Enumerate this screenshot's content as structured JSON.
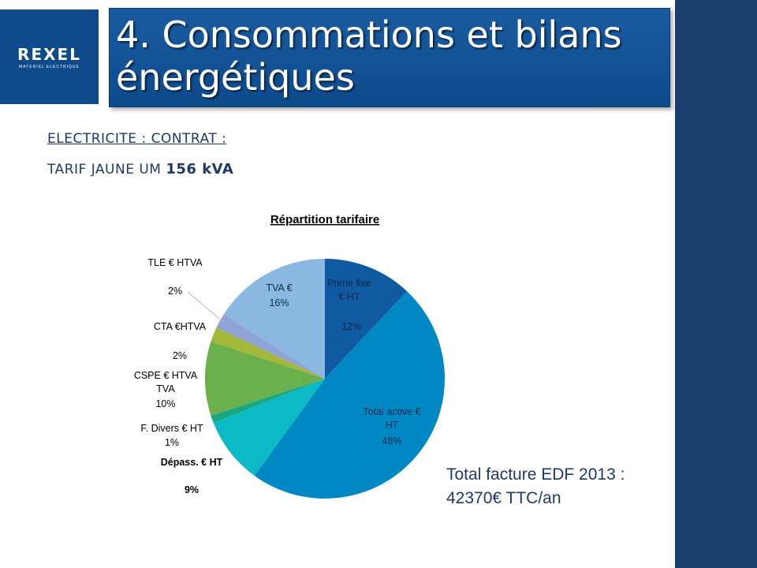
{
  "header": {
    "logo_text": "REXEL",
    "logo_subtitle": "MATERIEL ELECTRIQUE",
    "title_line1": "4. Consommations et bilans",
    "title_line2": "énergétiques"
  },
  "contract": {
    "line1": "ELECTRICITE : CONTRAT :",
    "line2_prefix": "TARIF JAUNE UM ",
    "line2_value": "156 kVA"
  },
  "total": {
    "line1": "Total facture EDF 2013 :",
    "line2": "42370€ TTC/an"
  },
  "colors": {
    "sidebar": "#1a3f6d",
    "title_bar": "#1a5ba0",
    "text_accent": "#1f3a66"
  },
  "chart_data": {
    "type": "pie",
    "title": "Répartition tarifaire",
    "slices": [
      {
        "label": "Prime fixe € HT",
        "value": 12,
        "pct": "12%",
        "color": "#0f5aa0"
      },
      {
        "label": "Total active € HT",
        "value": 48,
        "pct": "48%",
        "color": "#0088c4"
      },
      {
        "label": "Dépass. € HT",
        "value": 9,
        "pct": "9%",
        "color": "#0bbac4"
      },
      {
        "label": "F. Divers € HT",
        "value": 1,
        "pct": "1%",
        "color": "#17a882"
      },
      {
        "label": "CSPE € HTVA TVA",
        "value": 10,
        "pct": "10%",
        "color": "#6ab04c"
      },
      {
        "label": "CTA €HTVA",
        "value": 2,
        "pct": "2%",
        "color": "#a3b83a"
      },
      {
        "label": "TLE € HTVA",
        "value": 2,
        "pct": "2%",
        "color": "#8fa3d6"
      },
      {
        "label": "TVA €",
        "value": 16,
        "pct": "16%",
        "color": "#8ab8e0"
      }
    ]
  }
}
